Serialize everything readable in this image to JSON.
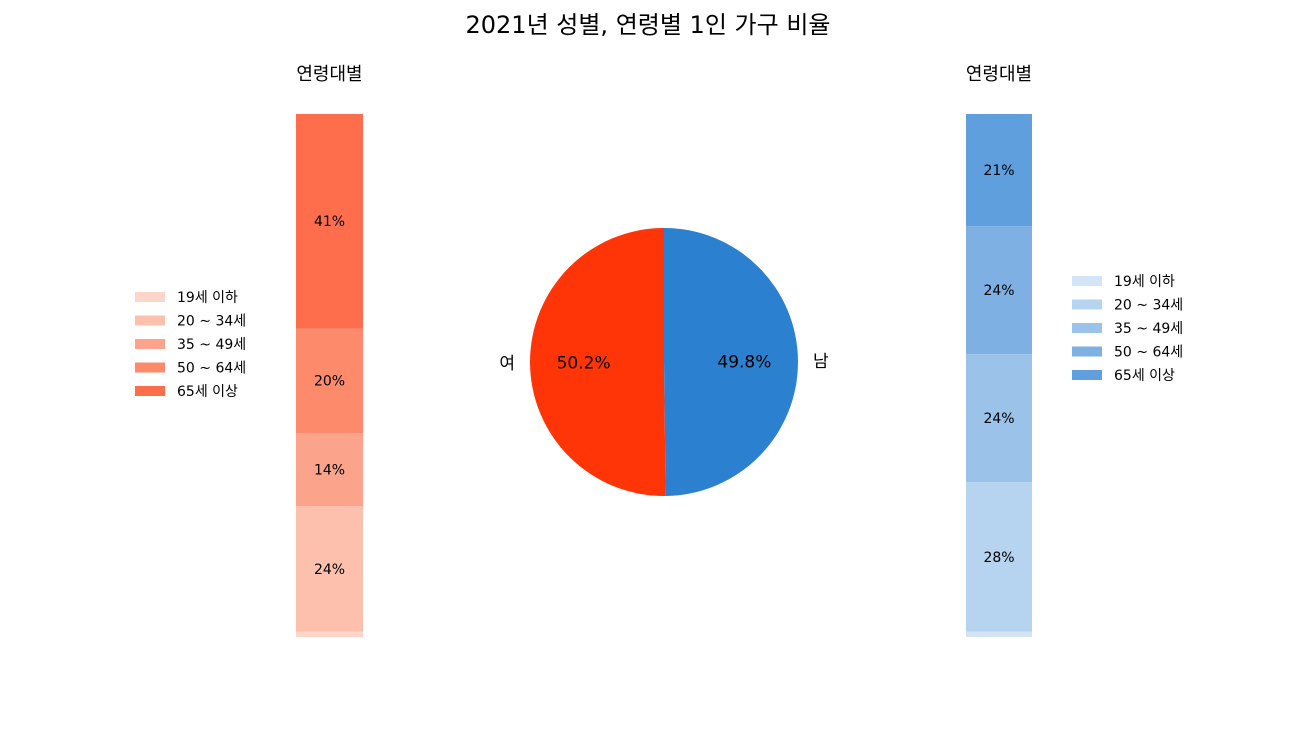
{
  "chart_data": {
    "type": "pie+stacked-bar",
    "title": "2021년 성별, 연령별 1인 가구 비율",
    "pie": {
      "slices": [
        {
          "label": "여",
          "value": 50.2,
          "pct_label": "50.2%",
          "color": "#ff3507"
        },
        {
          "label": "남",
          "value": 49.8,
          "pct_label": "49.8%",
          "color": "#2b80d0"
        }
      ]
    },
    "bars": [
      {
        "name": "female",
        "subtitle": "연령대별",
        "legend_placement": "left",
        "segments": [
          {
            "label": "19세 이하",
            "value": 1,
            "value_label": "1%",
            "color": "#fed5c9"
          },
          {
            "label": "20 ~ 34세",
            "value": 24,
            "value_label": "24%",
            "color": "#fdc0ad"
          },
          {
            "label": "35 ~ 49세",
            "value": 14,
            "value_label": "14%",
            "color": "#fca48b"
          },
          {
            "label": "50 ~ 64세",
            "value": 20,
            "value_label": "20%",
            "color": "#fc8a6b"
          },
          {
            "label": "65세 이상",
            "value": 41,
            "value_label": "41%",
            "color": "#fe6e4c"
          }
        ]
      },
      {
        "name": "male",
        "subtitle": "연령대별",
        "legend_placement": "right",
        "segments": [
          {
            "label": "19세 이하",
            "value": 1,
            "value_label": "1%",
            "color": "#d2e4f5"
          },
          {
            "label": "20 ~ 34세",
            "value": 28,
            "value_label": "28%",
            "color": "#b6d4ef"
          },
          {
            "label": "35 ~ 49세",
            "value": 24,
            "value_label": "24%",
            "color": "#9bc2e9"
          },
          {
            "label": "50 ~ 64세",
            "value": 24,
            "value_label": "24%",
            "color": "#7fb0e3"
          },
          {
            "label": "65세 이상",
            "value": 21,
            "value_label": "21%",
            "color": "#5f9fdd"
          }
        ]
      }
    ]
  }
}
